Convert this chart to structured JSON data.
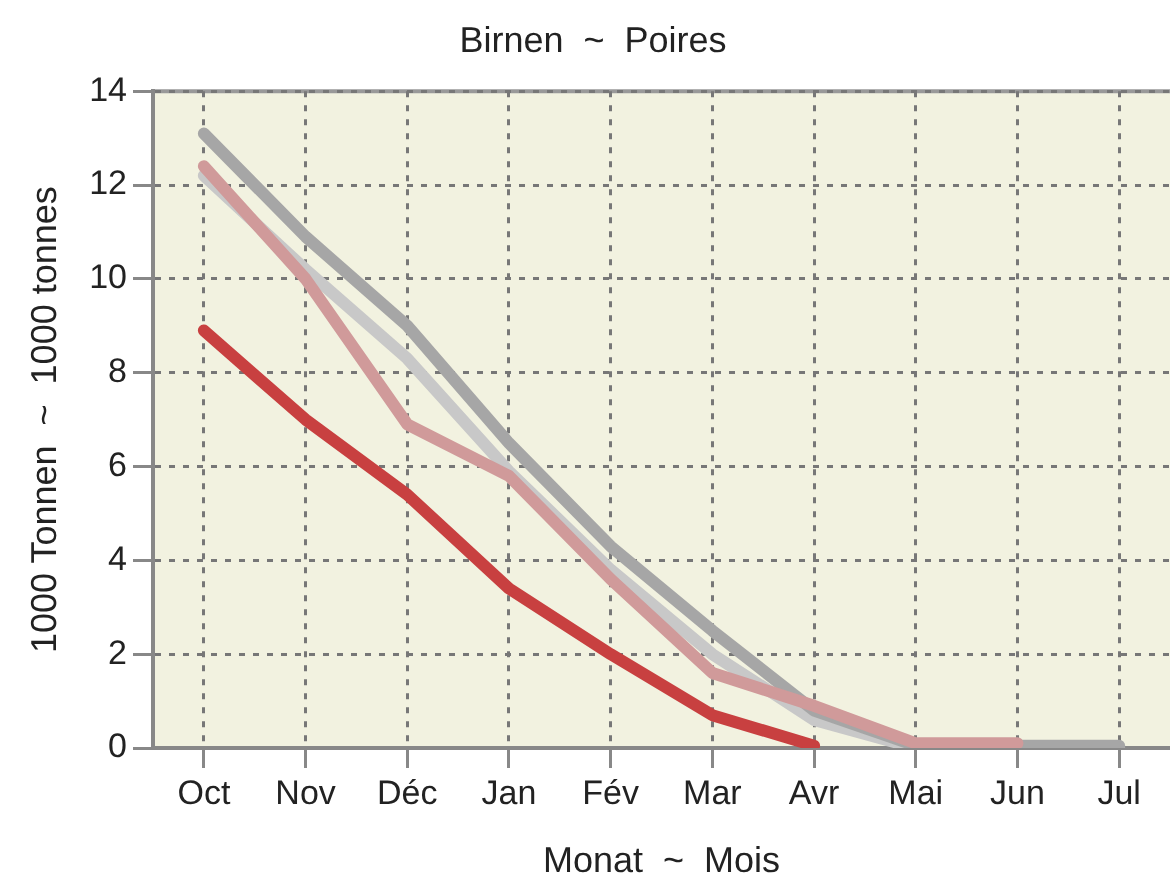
{
  "chart_data": {
    "type": "line",
    "title": "Birnen  ~  Poires",
    "xlabel": "Monat  ~  Mois",
    "ylabel": "1000 Tonnen  ~  1000 tonnes",
    "categories": [
      "Oct",
      "Nov",
      "Déc",
      "Jan",
      "Fév",
      "Mar",
      "Avr",
      "Mai",
      "Jun",
      "Jul"
    ],
    "series": [
      {
        "color": "#c8c8c8",
        "values": [
          12.2,
          10.2,
          8.3,
          5.9,
          3.8,
          2.0,
          0.6,
          0,
          0,
          0
        ]
      },
      {
        "color": "#a6a6a6",
        "values": [
          13.1,
          10.9,
          9.0,
          6.5,
          4.3,
          2.5,
          0.8,
          0.05,
          0.05,
          0.05
        ]
      },
      {
        "color": "#d09a9a",
        "values": [
          12.4,
          10.0,
          6.9,
          5.8,
          3.6,
          1.6,
          0.9,
          0.1,
          0.1,
          null
        ]
      },
      {
        "color": "#c84040",
        "values": [
          8.9,
          7.0,
          5.4,
          3.4,
          2.0,
          0.7,
          0.05,
          null,
          null,
          null
        ]
      }
    ],
    "ylim": [
      0,
      14
    ],
    "yticks": [
      0,
      2,
      4,
      6,
      8,
      10,
      12,
      14
    ],
    "grid": true,
    "legend": false,
    "marker": "none",
    "line_style": "solid"
  }
}
